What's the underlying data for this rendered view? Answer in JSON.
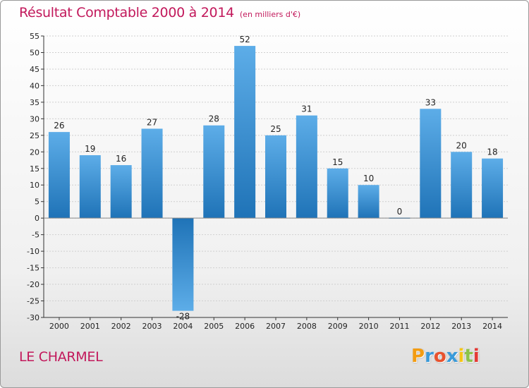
{
  "header": {
    "title": "Résultat Comptable 2000 à 2014",
    "unit": "(en milliers d'€)"
  },
  "footer": {
    "commune": "LE CHARMEL",
    "brand_letters": [
      "P",
      "r",
      "o",
      "x",
      "i",
      "t",
      "i"
    ],
    "brand_colors": [
      "#f39c12",
      "#3a9ad9",
      "#e8522e",
      "#3a9ad9",
      "#f5c518",
      "#8bc34a",
      "#e53935"
    ]
  },
  "colors": {
    "bar_light": "#5dade8",
    "bar_dark": "#1f73b7",
    "axis": "#333333",
    "grid": "#cfcfcf",
    "accent": "#c2185b"
  },
  "chart_data": {
    "type": "bar",
    "title": "Résultat Comptable 2000 à 2014",
    "subtitle": "(en milliers d'€)",
    "xlabel": "",
    "ylabel": "",
    "categories": [
      "2000",
      "2001",
      "2002",
      "2003",
      "2004",
      "2005",
      "2006",
      "2007",
      "2008",
      "2009",
      "2010",
      "2011",
      "2012",
      "2013",
      "2014"
    ],
    "values": [
      26,
      19,
      16,
      27,
      -28,
      28,
      52,
      25,
      31,
      15,
      10,
      0,
      33,
      20,
      18
    ],
    "ylim": [
      -30,
      55
    ],
    "yticks": [
      -30,
      -25,
      -20,
      -15,
      -10,
      -5,
      0,
      5,
      10,
      15,
      20,
      25,
      30,
      35,
      40,
      45,
      50,
      55
    ],
    "grid": true,
    "legend": "none"
  }
}
